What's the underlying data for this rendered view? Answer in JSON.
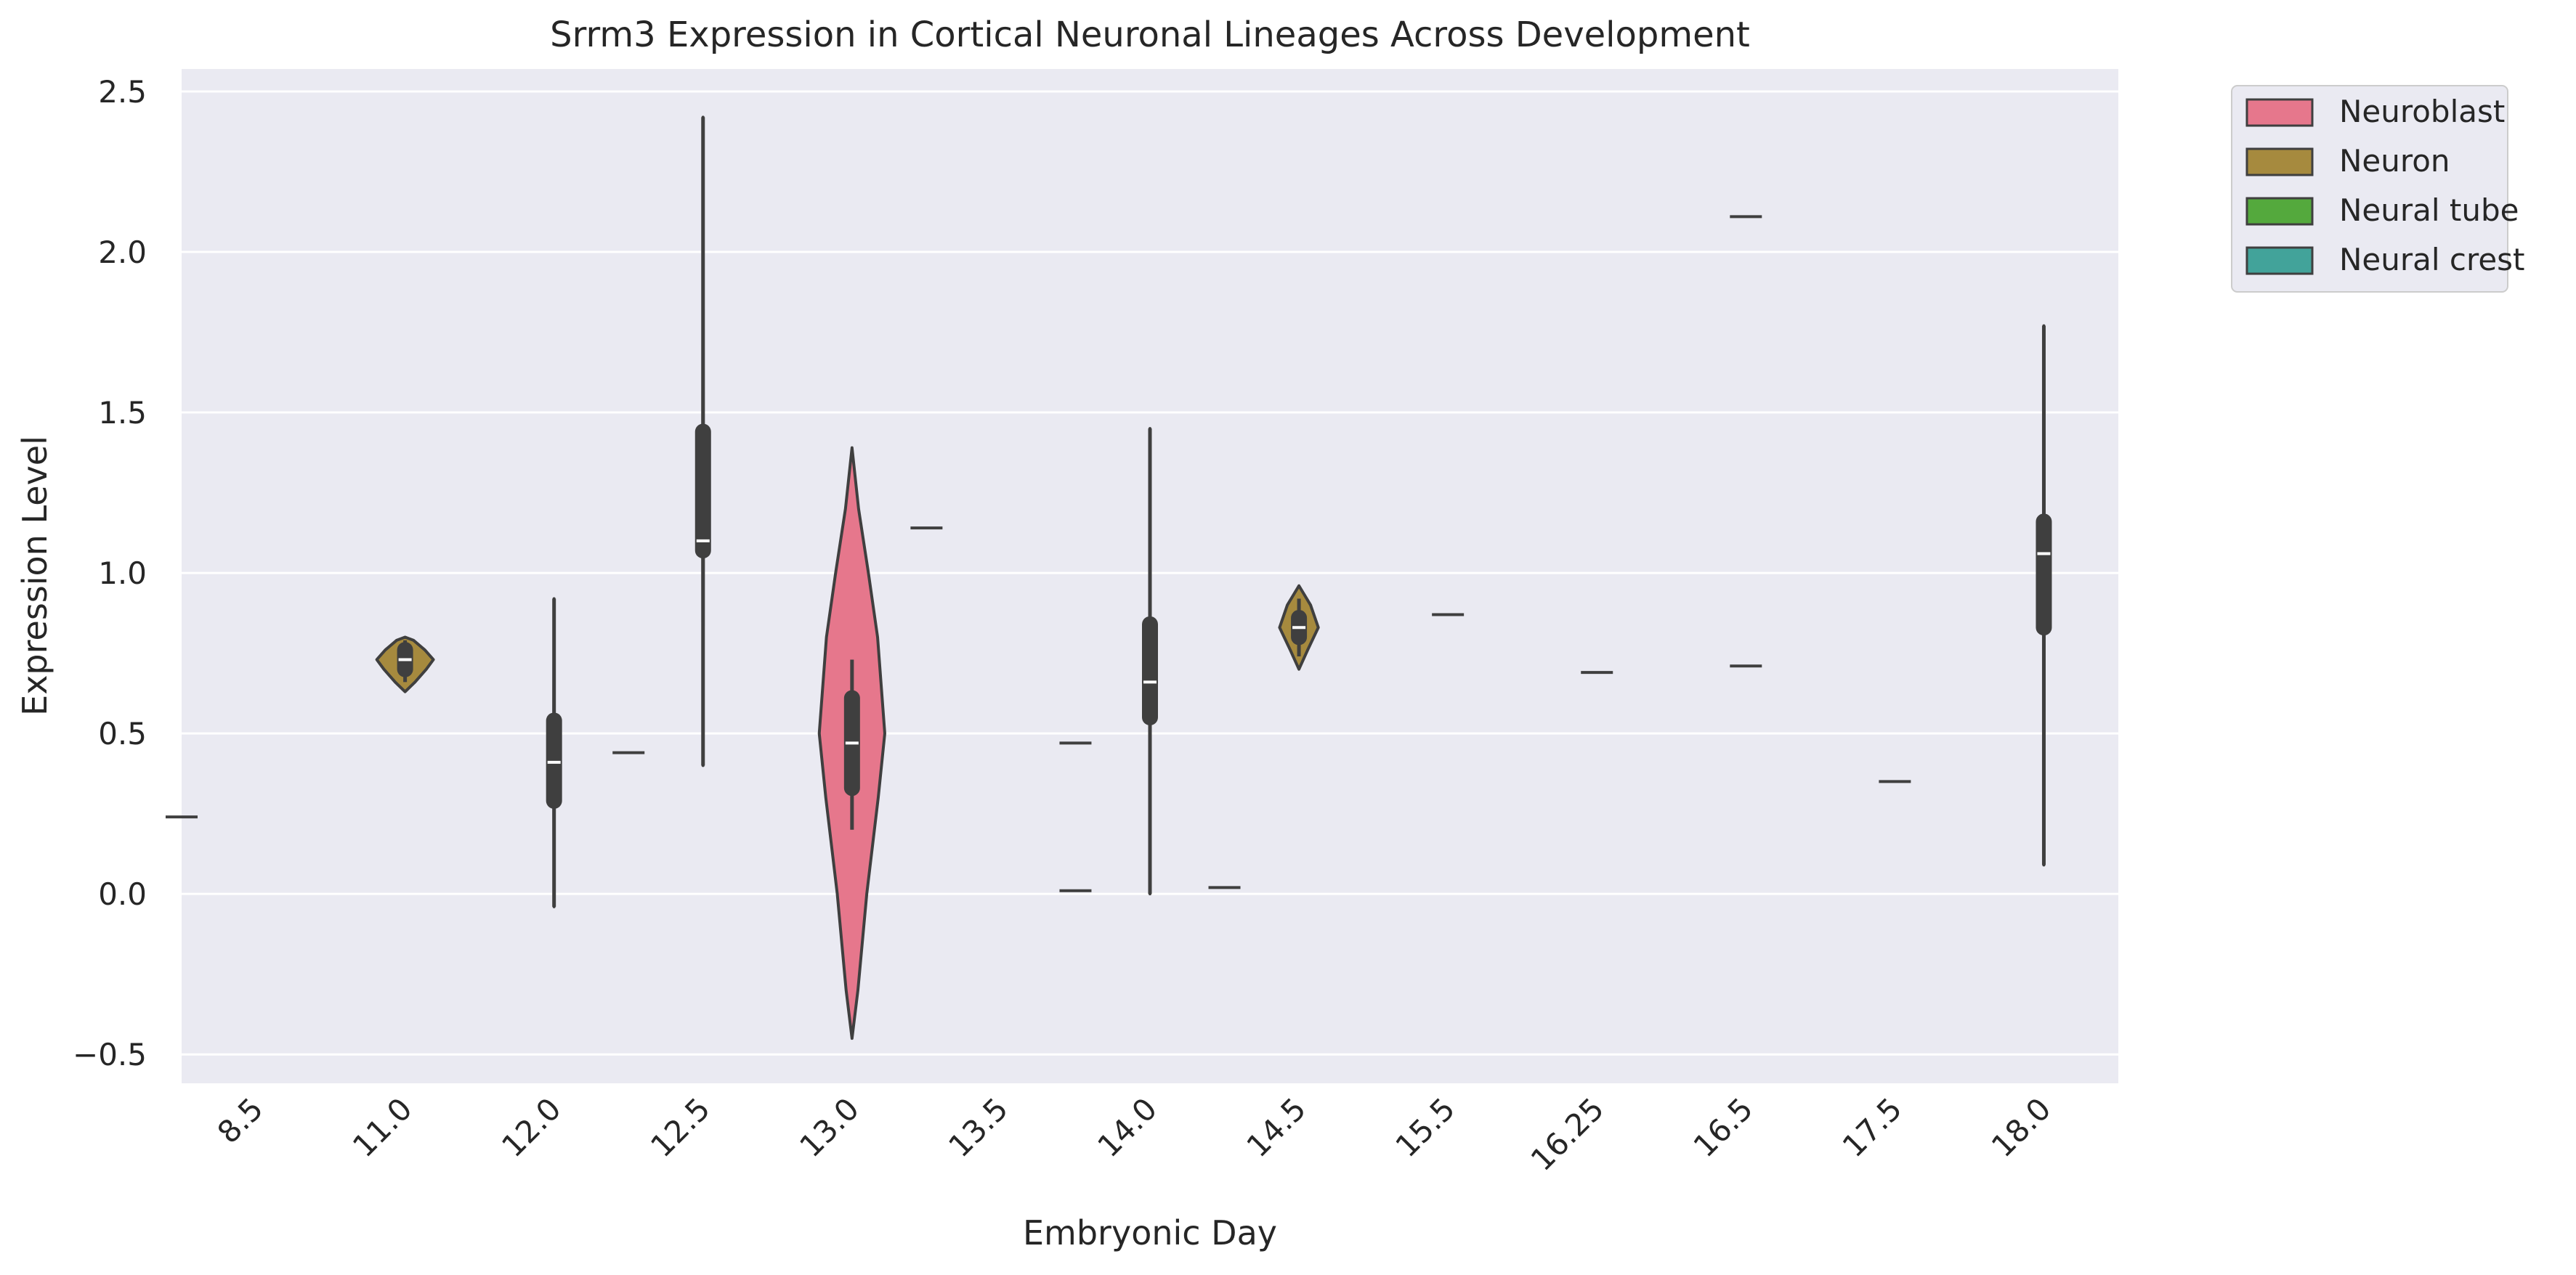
{
  "chart_data": {
    "type": "violin",
    "title": "Srrm3 Expression in Cortical Neuronal Lineages Across Development",
    "xlabel": "Embryonic Day",
    "ylabel": "Expression Level",
    "categories": [
      "8.5",
      "11.0",
      "12.0",
      "12.5",
      "13.0",
      "13.5",
      "14.0",
      "14.5",
      "15.5",
      "16.25",
      "16.5",
      "17.5",
      "18.0"
    ],
    "ylim": [
      -0.59,
      2.57
    ],
    "yticks": [
      -0.5,
      0.0,
      0.5,
      1.0,
      1.5,
      2.0,
      2.5
    ],
    "ytick_labels": [
      "−0.5",
      "0.0",
      "0.5",
      "1.0",
      "1.5",
      "2.0",
      "2.5"
    ],
    "grid": true,
    "legend_position": "outside-top-right",
    "background": "#eaeaf2",
    "series": [
      {
        "name": "Neuroblast",
        "color": "#e6778c"
      },
      {
        "name": "Neuron",
        "color": "#a68a3e"
      },
      {
        "name": "Neural tube",
        "color": "#54a93d"
      },
      {
        "name": "Neural crest",
        "color": "#42a39a"
      }
    ],
    "violins": [
      {
        "category": "8.5",
        "offset": -0.5,
        "series": "Neuroblast",
        "single": true,
        "value": 0.24
      },
      {
        "category": "11.0",
        "offset": 0,
        "series": "Neuron",
        "min": 0.63,
        "max": 0.8,
        "q1": 0.7,
        "median": 0.73,
        "q3": 0.76,
        "whisker_low": 0.66,
        "whisker_high": 0.79,
        "density": [
          [
            0.63,
            0
          ],
          [
            0.66,
            0.35
          ],
          [
            0.7,
            0.75
          ],
          [
            0.73,
            1.0
          ],
          [
            0.76,
            0.7
          ],
          [
            0.79,
            0.3
          ],
          [
            0.8,
            0
          ]
        ],
        "max_half_width": 0.19
      },
      {
        "category": "12.0",
        "offset": 0,
        "series": "Neuron",
        "min": -0.04,
        "max": 0.92,
        "q1": 0.29,
        "median": 0.41,
        "q3": 0.54,
        "whisker_low": -0.04,
        "whisker_high": 0.92,
        "density": [
          [
            -0.04,
            0
          ],
          [
            0.4,
            0.06
          ],
          [
            0.92,
            0
          ]
        ],
        "max_half_width": 0.04
      },
      {
        "category": "12.5",
        "offset": -0.5,
        "series": "Neuroblast",
        "single": true,
        "value": 0.44
      },
      {
        "category": "12.5",
        "offset": 0,
        "series": "Neuron",
        "min": 0.4,
        "max": 2.42,
        "q1": 1.07,
        "median": 1.1,
        "q3": 1.44,
        "whisker_low": 0.4,
        "whisker_high": 2.42,
        "density": [
          [
            0.4,
            0
          ],
          [
            1.2,
            0.06
          ],
          [
            2.42,
            0
          ]
        ],
        "max_half_width": 0.04
      },
      {
        "category": "13.0",
        "offset": 0,
        "series": "Neuroblast",
        "min": -0.45,
        "max": 1.39,
        "q1": 0.33,
        "median": 0.47,
        "q3": 0.61,
        "whisker_low": 0.2,
        "whisker_high": 0.73,
        "density": [
          [
            -0.45,
            0
          ],
          [
            -0.3,
            0.18
          ],
          [
            0.0,
            0.45
          ],
          [
            0.3,
            0.8
          ],
          [
            0.5,
            1.0
          ],
          [
            0.8,
            0.78
          ],
          [
            1.0,
            0.5
          ],
          [
            1.2,
            0.2
          ],
          [
            1.39,
            0
          ]
        ],
        "max_half_width": 0.22
      },
      {
        "category": "13.5",
        "offset": -0.5,
        "series": "Neuroblast",
        "single": true,
        "value": 1.14
      },
      {
        "category": "13.5",
        "offset": 0.5,
        "series": "Neuron",
        "single": true,
        "value": 0.01
      },
      {
        "category": "14.0",
        "offset": -0.5,
        "series": "Neuroblast",
        "single": true,
        "value": 0.47
      },
      {
        "category": "14.0",
        "offset": 0,
        "series": "Neuron",
        "min": 0.0,
        "max": 1.45,
        "q1": 0.55,
        "median": 0.66,
        "q3": 0.84,
        "whisker_low": 0.0,
        "whisker_high": 1.45,
        "density": [
          [
            0.0,
            0
          ],
          [
            0.7,
            0.06
          ],
          [
            1.45,
            0
          ]
        ],
        "max_half_width": 0.04
      },
      {
        "category": "14.0",
        "offset": 0.5,
        "series": "Neural tube",
        "single": true,
        "value": 0.02
      },
      {
        "category": "14.5",
        "offset": 0,
        "series": "Neuron",
        "min": 0.7,
        "max": 0.96,
        "q1": 0.8,
        "median": 0.83,
        "q3": 0.86,
        "whisker_low": 0.74,
        "whisker_high": 0.92,
        "density": [
          [
            0.7,
            0
          ],
          [
            0.76,
            0.45
          ],
          [
            0.83,
            1.0
          ],
          [
            0.9,
            0.6
          ],
          [
            0.96,
            0
          ]
        ],
        "max_half_width": 0.13
      },
      {
        "category": "15.5",
        "offset": 0,
        "series": "Neuron",
        "single": true,
        "value": 0.87
      },
      {
        "category": "16.25",
        "offset": 0,
        "series": "Neuron",
        "single": true,
        "value": 0.69
      },
      {
        "category": "16.5",
        "offset": 0,
        "series": "Neuroblast",
        "single": true,
        "value": 2.11
      },
      {
        "category": "16.5",
        "offset": 0,
        "series": "Neuron",
        "single": true,
        "value": 0.71
      },
      {
        "category": "17.5",
        "offset": 0,
        "series": "Neuron",
        "single": true,
        "value": 0.35
      },
      {
        "category": "18.0",
        "offset": 0,
        "series": "Neuron",
        "min": 0.09,
        "max": 1.77,
        "q1": 0.83,
        "median": 1.06,
        "q3": 1.16,
        "whisker_low": 0.09,
        "whisker_high": 1.77,
        "density": [
          [
            0.09,
            0
          ],
          [
            1.0,
            0.06
          ],
          [
            1.77,
            0
          ]
        ],
        "max_half_width": 0.04
      }
    ]
  }
}
